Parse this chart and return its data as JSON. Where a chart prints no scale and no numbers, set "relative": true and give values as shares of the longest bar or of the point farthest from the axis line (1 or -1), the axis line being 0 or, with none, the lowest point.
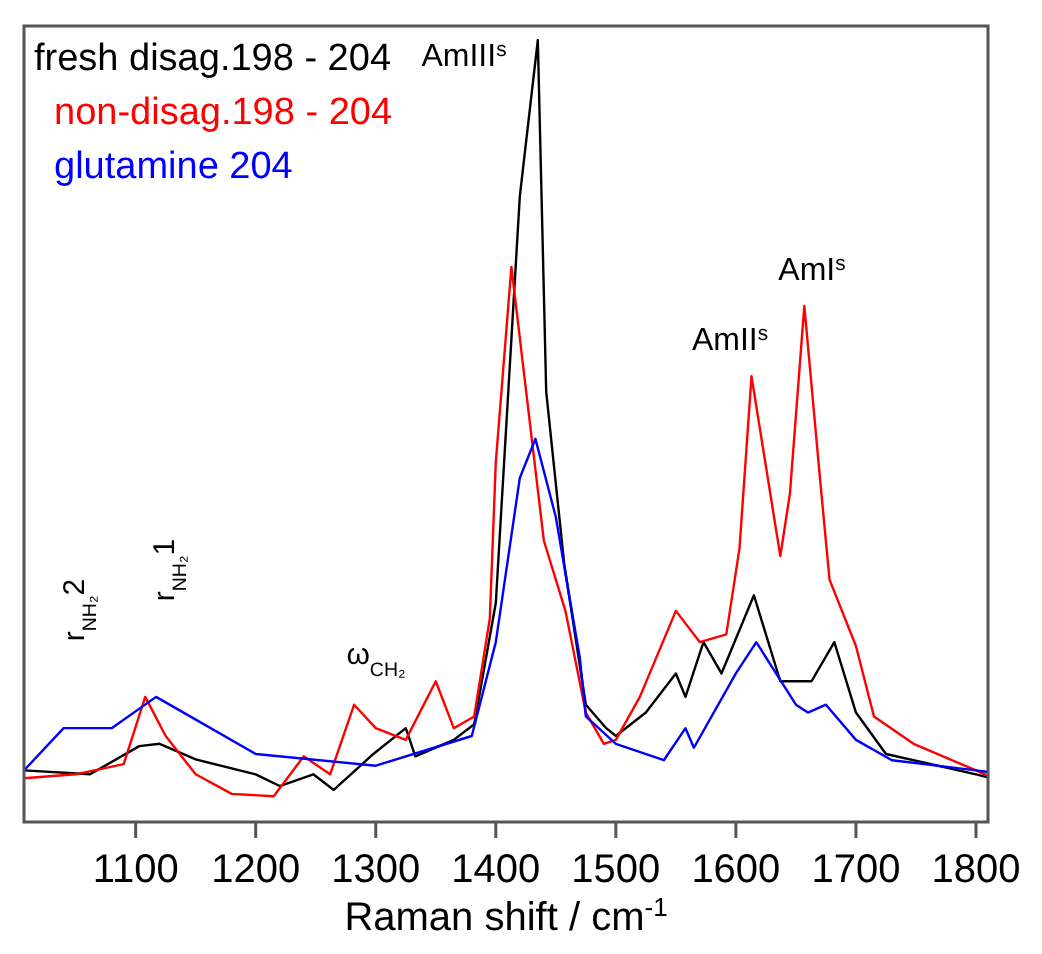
{
  "chart_data": {
    "type": "line",
    "relative": true,
    "xlabel": "Raman shift / cm$^{-1}$",
    "xlim": [
      1007,
      1810
    ],
    "xticks": [
      1100,
      1200,
      1300,
      1400,
      1500,
      1600,
      1700,
      1800
    ],
    "tick_labels": "x",
    "grid": false,
    "legend": "top left",
    "marker": "none",
    "line_style": "solid",
    "series": [
      {
        "name": "fresh disag.198 - 204",
        "color": "#000000",
        "x": [
          1007,
          1062,
          1103,
          1120,
          1150,
          1200,
          1220,
          1248,
          1265,
          1298,
          1325,
          1333,
          1365,
          1382,
          1400,
          1420,
          1435,
          1442,
          1457,
          1475,
          1492,
          1500,
          1525,
          1550,
          1558,
          1573,
          1588,
          1615,
          1637,
          1663,
          1682,
          1700,
          1725,
          1800,
          1810
        ],
        "values": [
          0.066,
          0.061,
          0.097,
          0.1,
          0.08,
          0.061,
          0.046,
          0.061,
          0.041,
          0.087,
          0.12,
          0.084,
          0.105,
          0.125,
          0.28,
          0.8,
          1.0,
          0.55,
          0.33,
          0.15,
          0.12,
          0.11,
          0.14,
          0.19,
          0.16,
          0.23,
          0.19,
          0.29,
          0.18,
          0.18,
          0.23,
          0.14,
          0.087,
          0.061,
          0.057
        ]
      },
      {
        "name": "non-disag.198 - 204",
        "color": "#ff0000",
        "x": [
          1007,
          1050,
          1090,
          1108,
          1125,
          1150,
          1180,
          1215,
          1240,
          1262,
          1282,
          1300,
          1325,
          1350,
          1365,
          1382,
          1395,
          1400,
          1413,
          1440,
          1458,
          1475,
          1490,
          1500,
          1520,
          1550,
          1570,
          1592,
          1603,
          1613,
          1637,
          1645,
          1657,
          1670,
          1678,
          1700,
          1715,
          1748,
          1800,
          1810
        ],
        "values": [
          0.056,
          0.061,
          0.074,
          0.16,
          0.11,
          0.061,
          0.036,
          0.033,
          0.084,
          0.061,
          0.15,
          0.12,
          0.105,
          0.18,
          0.12,
          0.135,
          0.26,
          0.46,
          0.71,
          0.36,
          0.27,
          0.14,
          0.1,
          0.105,
          0.16,
          0.27,
          0.23,
          0.24,
          0.35,
          0.57,
          0.34,
          0.42,
          0.66,
          0.44,
          0.31,
          0.225,
          0.135,
          0.1,
          0.066,
          0.059
        ]
      },
      {
        "name": "glutamine  204",
        "color": "#0000ff",
        "x": [
          1007,
          1040,
          1080,
          1117,
          1200,
          1300,
          1380,
          1400,
          1420,
          1433,
          1450,
          1470,
          1475,
          1500,
          1540,
          1558,
          1565,
          1600,
          1617,
          1650,
          1660,
          1675,
          1700,
          1730,
          1800,
          1810
        ],
        "values": [
          0.066,
          0.12,
          0.12,
          0.16,
          0.087,
          0.072,
          0.11,
          0.23,
          0.44,
          0.49,
          0.39,
          0.21,
          0.135,
          0.1,
          0.079,
          0.12,
          0.095,
          0.19,
          0.23,
          0.15,
          0.14,
          0.15,
          0.105,
          0.079,
          0.066,
          0.064
        ]
      }
    ],
    "annotations": [
      "AmIII$^{s}$",
      "AmII$^{s}$",
      "AmI$^{s}$",
      "ω$_{CH₂}$",
      "r$_{NH₂}$2",
      "r$_{NH₂}$1"
    ]
  }
}
